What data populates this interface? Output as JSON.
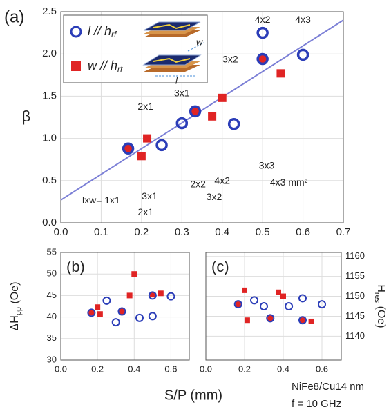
{
  "figure": {
    "xlabel": "S/P (mm)",
    "note": [
      "NiFe8/Cu14 nm",
      "f = 10 GHz"
    ]
  },
  "chart_data": [
    {
      "type": "scatter",
      "panel_label": "(a)",
      "ylabel": "β",
      "xlim": [
        0,
        0.7
      ],
      "ylim": [
        0,
        2.5
      ],
      "xticks": [
        {
          "value": 0,
          "label": "0.0"
        },
        0.1,
        0.2,
        0.3,
        0.4,
        0.5,
        0.6,
        0.7
      ],
      "yticks": [
        {
          "value": 0,
          "label": "0.0"
        },
        0.5,
        {
          "value": 1,
          "label": "1.0"
        },
        1.5,
        {
          "value": 2,
          "label": "2.0"
        },
        2.5
      ],
      "grid": true,
      "series": [
        {
          "name": "l // h",
          "name_sub": "rf",
          "color": "#2b3db8",
          "marker": "circle",
          "x": [
            0.167,
            0.25,
            0.3,
            0.333,
            0.429,
            0.5,
            0.5,
            0.6
          ],
          "values": [
            0.88,
            0.92,
            1.18,
            1.32,
            1.17,
            1.94,
            2.25,
            1.99
          ]
        },
        {
          "name": "w // h",
          "name_sub": "rf",
          "color": "#e02424",
          "marker": "square",
          "x": [
            0.167,
            0.2,
            0.214,
            0.333,
            0.375,
            0.4,
            0.5,
            0.545
          ],
          "values": [
            0.88,
            0.79,
            1.0,
            1.33,
            1.26,
            1.48,
            1.94,
            1.77
          ]
        }
      ],
      "fit": {
        "color": "#7b7fd6",
        "x": [
          0,
          0.7
        ],
        "y": [
          0.27,
          2.4
        ]
      },
      "inset_labels": [
        "w",
        "l"
      ],
      "annotations": [
        {
          "text": "4x2",
          "color": "#2b3db8"
        },
        {
          "text": "4x3",
          "color": "#2b3db8"
        },
        {
          "text": "3x2",
          "color": "#2b3db8"
        },
        {
          "text": "3x1",
          "color": "#2b3db8"
        },
        {
          "text": "2x1",
          "color": "#2b3db8"
        },
        {
          "text": "lxw= 1x1",
          "color": "#e02424"
        },
        {
          "text": "3x1",
          "color": "#e02424"
        },
        {
          "text": "2x1",
          "color": "#e02424"
        },
        {
          "text": "2x2",
          "color": "#e02424"
        },
        {
          "text": "4x2",
          "color": "#e02424"
        },
        {
          "text": "3x2",
          "color": "#e02424"
        },
        {
          "text": "3x3",
          "color": "#e02424"
        },
        {
          "text": "4x3 mm²",
          "color": "#e02424"
        }
      ]
    },
    {
      "type": "scatter",
      "panel_label": "(b)",
      "ylabel": "ΔH",
      "ylabel_sub": "pp",
      "ylabel_unit": " (Oe)",
      "xlim": [
        0,
        0.7
      ],
      "ylim": [
        30,
        55
      ],
      "xticks": [
        {
          "value": 0,
          "label": "0.0"
        },
        0.2,
        0.4,
        0.6
      ],
      "yticks": [
        30,
        35,
        40,
        45,
        50,
        55
      ],
      "grid": true,
      "series": [
        {
          "color": "#2b3db8",
          "marker": "circle",
          "x": [
            0.167,
            0.25,
            0.3,
            0.333,
            0.429,
            0.5,
            0.5,
            0.6
          ],
          "values": [
            41,
            43.8,
            38.8,
            41.3,
            39.8,
            45,
            40.2,
            44.8
          ]
        },
        {
          "color": "#e02424",
          "marker": "square",
          "x": [
            0.167,
            0.2,
            0.214,
            0.333,
            0.375,
            0.4,
            0.5,
            0.545
          ],
          "values": [
            41,
            42.3,
            40.7,
            41.3,
            45,
            50,
            45.2,
            45.5
          ]
        }
      ]
    },
    {
      "type": "scatter",
      "panel_label": "(c)",
      "ylabel": "H",
      "ylabel_sub": "res",
      "ylabel_unit": " (Oe)",
      "xlim": [
        0,
        0.7
      ],
      "ylim": [
        1134,
        1161
      ],
      "xticks": [
        {
          "value": 0,
          "label": "0.0"
        },
        0.2,
        0.4,
        0.6
      ],
      "yticks": [
        1140,
        1145,
        1150,
        1155,
        1160
      ],
      "grid": true,
      "series": [
        {
          "color": "#2b3db8",
          "marker": "circle",
          "x": [
            0.167,
            0.25,
            0.3,
            0.333,
            0.429,
            0.5,
            0.5,
            0.6
          ],
          "values": [
            1148,
            1149,
            1147.5,
            1144.5,
            1147.5,
            1149.5,
            1144,
            1148
          ]
        },
        {
          "color": "#e02424",
          "marker": "square",
          "x": [
            0.167,
            0.2,
            0.214,
            0.333,
            0.375,
            0.4,
            0.5,
            0.545
          ],
          "values": [
            1148,
            1151.5,
            1144,
            1144.5,
            1151,
            1150,
            1144,
            1143.7
          ]
        }
      ]
    }
  ]
}
